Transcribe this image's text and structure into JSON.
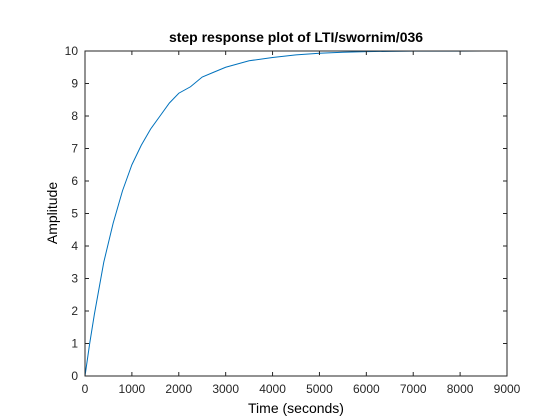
{
  "chart_data": {
    "type": "line",
    "title": "step response plot of LTI/swornim/036",
    "xlabel": "Time (seconds)",
    "ylabel": "Amplitude",
    "xlim": [
      0,
      9000
    ],
    "ylim": [
      0,
      10
    ],
    "xticks": [
      0,
      1000,
      2000,
      3000,
      4000,
      5000,
      6000,
      7000,
      8000,
      9000
    ],
    "yticks": [
      0,
      1,
      2,
      3,
      4,
      5,
      6,
      7,
      8,
      9,
      10
    ],
    "grid": false,
    "legend": false,
    "steady_state": 10,
    "colors": {
      "line": "#0072bd",
      "axes": "#262626",
      "steady_state_line": "#000000"
    },
    "series": [
      {
        "x": [
          0,
          100,
          200,
          300,
          400,
          500,
          600,
          700,
          800,
          900,
          1000,
          1200,
          1400,
          1600,
          1800,
          2000,
          2250,
          2500,
          2750,
          3000,
          3500,
          4000,
          4500,
          5000,
          5500,
          6000,
          6500,
          7000,
          7500,
          8000,
          8500,
          9000
        ],
        "values": [
          0,
          1.0,
          1.9,
          2.7,
          3.5,
          4.1,
          4.7,
          5.2,
          5.7,
          6.1,
          6.5,
          7.1,
          7.6,
          8.0,
          8.4,
          8.7,
          8.9,
          9.2,
          9.35,
          9.5,
          9.7,
          9.8,
          9.88,
          9.93,
          9.96,
          9.98,
          9.99,
          9.995,
          9.997,
          9.998,
          9.999,
          10.0
        ]
      }
    ]
  }
}
